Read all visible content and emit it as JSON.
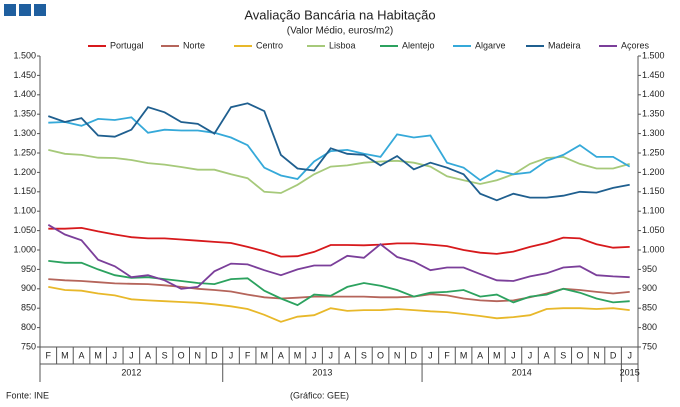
{
  "chart_data": {
    "type": "line",
    "title": "Avaliação Bancária na Habitação",
    "subtitle": "(Valor Médio, euros/m2)",
    "source": "Fonte: INE",
    "credit": "(Gráfico: GEE)",
    "categories": [
      "F",
      "M",
      "A",
      "M",
      "J",
      "J",
      "A",
      "S",
      "O",
      "N",
      "D",
      "J",
      "F",
      "M",
      "A",
      "M",
      "J",
      "J",
      "A",
      "S",
      "O",
      "N",
      "D",
      "J",
      "F",
      "M",
      "A",
      "M",
      "J",
      "J",
      "A",
      "S",
      "O",
      "N",
      "D",
      "J"
    ],
    "years": [
      "2012",
      "2013",
      "2014",
      "2015"
    ],
    "ylim": [
      750,
      1500
    ],
    "yticks": [
      {
        "value": 750,
        "label": "750"
      },
      {
        "value": 800,
        "label": "800"
      },
      {
        "value": 850,
        "label": "850"
      },
      {
        "value": 900,
        "label": "900"
      },
      {
        "value": 950,
        "label": "950"
      },
      {
        "value": 1000,
        "label": "1.000"
      },
      {
        "value": 1050,
        "label": "1.050"
      },
      {
        "value": 1100,
        "label": "1.100"
      },
      {
        "value": 1150,
        "label": "1.150"
      },
      {
        "value": 1200,
        "label": "1.200"
      },
      {
        "value": 1250,
        "label": "1.250"
      },
      {
        "value": 1300,
        "label": "1.300"
      },
      {
        "value": 1350,
        "label": "1.350"
      },
      {
        "value": 1400,
        "label": "1.400"
      },
      {
        "value": 1450,
        "label": "1.450"
      },
      {
        "value": 1500,
        "label": "1.500"
      }
    ],
    "grid": false,
    "legend": "top",
    "series": [
      {
        "name": "Portugal",
        "color": "#d7191c",
        "values": [
          1055,
          1055,
          1057,
          1048,
          1040,
          1033,
          1030,
          1030,
          1027,
          1024,
          1021,
          1018,
          1008,
          997,
          983,
          984,
          995,
          1013,
          1013,
          1012,
          1014,
          1017,
          1017,
          1014,
          1010,
          1000,
          993,
          990,
          996,
          1008,
          1018,
          1032,
          1030,
          1015,
          1006,
          1008
        ]
      },
      {
        "name": "Norte",
        "color": "#b5655b",
        "values": [
          925,
          922,
          920,
          917,
          914,
          913,
          912,
          909,
          905,
          900,
          897,
          893,
          885,
          878,
          875,
          877,
          880,
          880,
          880,
          880,
          878,
          878,
          880,
          886,
          883,
          875,
          870,
          868,
          870,
          878,
          888,
          900,
          897,
          892,
          888,
          892
        ]
      },
      {
        "name": "Centro",
        "color": "#e8b82a",
        "values": [
          905,
          897,
          895,
          888,
          883,
          873,
          870,
          868,
          866,
          864,
          860,
          855,
          848,
          833,
          815,
          828,
          832,
          850,
          843,
          845,
          845,
          848,
          845,
          842,
          840,
          835,
          830,
          824,
          827,
          832,
          848,
          850,
          850,
          848,
          850,
          845
        ]
      },
      {
        "name": "Lisboa",
        "color": "#a6c97a",
        "values": [
          1258,
          1248,
          1245,
          1238,
          1237,
          1232,
          1224,
          1220,
          1214,
          1207,
          1207,
          1195,
          1185,
          1150,
          1147,
          1168,
          1195,
          1215,
          1218,
          1225,
          1228,
          1230,
          1225,
          1215,
          1190,
          1180,
          1170,
          1180,
          1195,
          1222,
          1237,
          1240,
          1222,
          1210,
          1210,
          1222
        ]
      },
      {
        "name": "Alentejo",
        "color": "#2ca25f",
        "values": [
          972,
          967,
          967,
          950,
          935,
          928,
          930,
          925,
          920,
          915,
          912,
          925,
          927,
          895,
          875,
          858,
          885,
          882,
          905,
          915,
          908,
          897,
          880,
          890,
          892,
          897,
          880,
          885,
          865,
          880,
          885,
          900,
          890,
          875,
          865,
          868
        ]
      },
      {
        "name": "Algarve",
        "color": "#35a9d9",
        "values": [
          1328,
          1330,
          1320,
          1338,
          1335,
          1342,
          1302,
          1310,
          1308,
          1308,
          1302,
          1290,
          1270,
          1212,
          1192,
          1183,
          1228,
          1255,
          1258,
          1248,
          1240,
          1298,
          1290,
          1295,
          1225,
          1212,
          1180,
          1205,
          1195,
          1200,
          1230,
          1245,
          1270,
          1240,
          1240,
          1215
        ]
      },
      {
        "name": "Madeira",
        "color": "#1f5f8f",
        "values": [
          1345,
          1330,
          1340,
          1295,
          1292,
          1310,
          1368,
          1355,
          1330,
          1325,
          1300,
          1368,
          1378,
          1358,
          1245,
          1210,
          1205,
          1262,
          1248,
          1245,
          1218,
          1242,
          1208,
          1225,
          1212,
          1195,
          1145,
          1128,
          1145,
          1135,
          1135,
          1140,
          1150,
          1148,
          1160,
          1168
        ]
      },
      {
        "name": "Açores",
        "color": "#7b3f9a",
        "values": [
          1065,
          1040,
          1025,
          975,
          958,
          930,
          935,
          922,
          900,
          905,
          945,
          965,
          963,
          948,
          935,
          950,
          960,
          960,
          985,
          980,
          1015,
          982,
          970,
          948,
          955,
          955,
          938,
          922,
          920,
          932,
          940,
          955,
          958,
          935,
          932,
          930
        ]
      }
    ]
  }
}
